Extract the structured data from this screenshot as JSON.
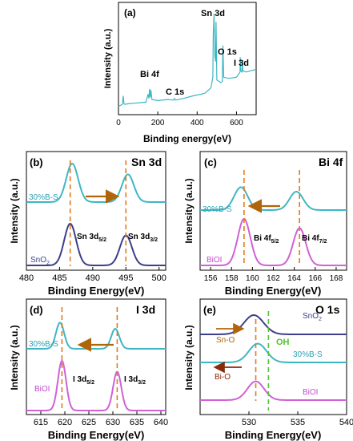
{
  "colors": {
    "teal": "#3fb6c4",
    "purple_dark": "#3d3f8a",
    "magenta": "#d061d6",
    "orange_dash": "#e07a1f",
    "green_dash": "#53c232",
    "arrow_brown": "#b0650a",
    "arrow_darkred": "#8a2a0a",
    "sample_teal_label": "#2ea0b2",
    "sample_magenta_label": "#c24bcc",
    "sample_purple_label": "#3d3f8a"
  },
  "chart_data": [
    {
      "id": "a",
      "type": "line",
      "panel_label": "(a)",
      "xlabel": "Binding energy(eV)",
      "ylabel": "Intensity (a.u.)",
      "xlim": [
        0,
        700
      ],
      "xticks": [
        0,
        200,
        400,
        600
      ],
      "series": [
        {
          "color": "teal",
          "x": [
            0,
            10,
            20,
            24,
            28,
            32,
            50,
            80,
            110,
            140,
            150,
            155,
            158,
            162,
            165,
            170,
            200,
            250,
            280,
            285,
            290,
            330,
            380,
            420,
            440,
            470,
            480,
            482,
            486,
            490,
            494,
            496,
            500,
            520,
            528,
            531,
            535,
            560,
            600,
            618,
            619,
            622,
            628,
            630,
            633,
            650,
            700
          ],
          "y": [
            5,
            7,
            9,
            25,
            10,
            9,
            10,
            11,
            12,
            13,
            28,
            20,
            38,
            22,
            36,
            18,
            16,
            18,
            17,
            20,
            17,
            20,
            25,
            28,
            30,
            40,
            60,
            140,
            180,
            100,
            90,
            165,
            55,
            50,
            52,
            120,
            60,
            58,
            60,
            70,
            98,
            72,
            70,
            90,
            72,
            70,
            75
          ]
        }
      ],
      "annotations": [
        "Bi 4f",
        "C 1s",
        "Sn 3d",
        "O 1s",
        "I 3d"
      ]
    },
    {
      "id": "b",
      "type": "line",
      "panel_label": "(b)",
      "element_title": "Sn 3d",
      "xlabel": "Binding Energy(eV)",
      "ylabel": "Intensity (a.u.)",
      "xlim": [
        480,
        501
      ],
      "xticks": [
        480,
        485,
        490,
        495,
        500
      ],
      "series": [
        {
          "name": "30%B-S",
          "color": "teal",
          "peaks": [
            {
              "center": 486.9,
              "height": 1.0,
              "width": 0.9
            },
            {
              "center": 495.3,
              "height": 0.72,
              "width": 0.9
            }
          ]
        },
        {
          "name": "SnO2",
          "color": "purple_dark",
          "peaks": [
            {
              "center": 486.6,
              "height": 1.0,
              "width": 0.9
            },
            {
              "center": 495.0,
              "height": 0.72,
              "width": 0.9
            }
          ]
        }
      ],
      "peak_labels": [
        "Sn 3d5/2",
        "Sn 3d3/2"
      ],
      "ref_lines": [
        486.6,
        495.0
      ],
      "sample_labels": [
        "30%B-S",
        "SnO2"
      ]
    },
    {
      "id": "c",
      "type": "line",
      "panel_label": "(c)",
      "element_title": "Bi 4f",
      "xlabel": "Binding Energy(eV)",
      "ylabel": "Intensity (a.u.)",
      "xlim": [
        155,
        169
      ],
      "xticks": [
        156,
        158,
        160,
        162,
        164,
        166,
        168
      ],
      "series": [
        {
          "name": "30%B-S",
          "color": "teal",
          "peaks": [
            {
              "center": 158.9,
              "height": 0.62,
              "width": 0.65
            },
            {
              "center": 164.2,
              "height": 0.5,
              "width": 0.65
            }
          ]
        },
        {
          "name": "BiOI",
          "color": "magenta",
          "peaks": [
            {
              "center": 159.2,
              "height": 1.0,
              "width": 0.6
            },
            {
              "center": 164.5,
              "height": 0.8,
              "width": 0.6
            }
          ]
        }
      ],
      "peak_labels": [
        "Bi 4f5/2",
        "Bi 4f7/2"
      ],
      "ref_lines": [
        159.2,
        164.5
      ],
      "sample_labels": [
        "30%B-S",
        "BiOI"
      ]
    },
    {
      "id": "d",
      "type": "line",
      "panel_label": "(d)",
      "element_title": "I 3d",
      "xlabel": "Binding Energy(eV)",
      "ylabel": "Intensity (a.u.)",
      "xlim": [
        612,
        641
      ],
      "xticks": [
        615,
        620,
        625,
        630,
        635,
        640
      ],
      "series": [
        {
          "name": "30%B-S",
          "color": "teal",
          "peaks": [
            {
              "center": 619.0,
              "height": 0.68,
              "width": 0.85
            },
            {
              "center": 630.5,
              "height": 0.52,
              "width": 0.85
            }
          ]
        },
        {
          "name": "BiOI",
          "color": "magenta",
          "peaks": [
            {
              "center": 619.4,
              "height": 1.0,
              "width": 0.85
            },
            {
              "center": 630.9,
              "height": 0.78,
              "width": 0.85
            }
          ]
        }
      ],
      "peak_labels": [
        "I 3d5/2",
        "I 3d3/2"
      ],
      "ref_lines": [
        619.4,
        630.9
      ],
      "sample_labels": [
        "30%B-S",
        "BiOI"
      ]
    },
    {
      "id": "e",
      "type": "line",
      "panel_label": "(e)",
      "element_title": "O 1s",
      "xlabel": "Binding Energy(eV)",
      "ylabel": "Intensity (a.u.)",
      "xlim": [
        525,
        540
      ],
      "xticks": [
        530,
        535,
        540
      ],
      "series": [
        {
          "name": "SnO2",
          "color": "purple_dark",
          "peaks": [
            {
              "center": 530.5,
              "height": 0.4,
              "width": 1.0
            }
          ]
        },
        {
          "name": "30%B-S",
          "color": "teal",
          "peaks": [
            {
              "center": 530.9,
              "height": 0.45,
              "width": 0.9
            }
          ]
        },
        {
          "name": "BiOI",
          "color": "magenta",
          "peaks": [
            {
              "center": 530.7,
              "height": 0.45,
              "width": 0.85
            }
          ]
        }
      ],
      "annotations": [
        "Sn-O",
        "OH",
        "Bi-O"
      ],
      "ref_lines": [
        530.7,
        532.0
      ],
      "sample_labels": [
        "SnO2",
        "30%B-S",
        "BiOI"
      ]
    }
  ]
}
